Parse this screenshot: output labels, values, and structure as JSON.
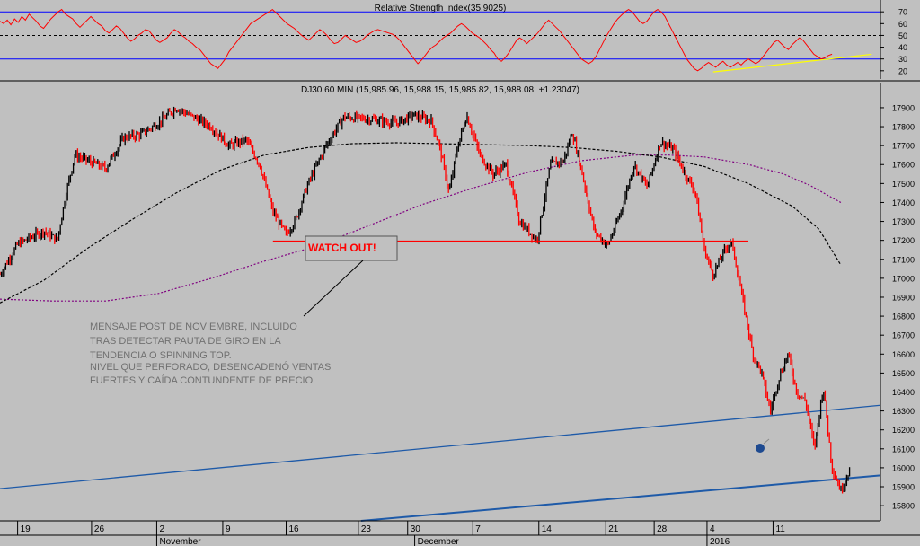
{
  "chart_data": [
    {
      "type": "line",
      "title": "Relative Strength Index(35.9025)",
      "ylim": [
        13,
        77
      ],
      "y_ticks": [
        "70",
        "60",
        "50",
        "40",
        "30",
        "20"
      ],
      "reference_lines": [
        70,
        50,
        30
      ],
      "series": [
        {
          "values": [
            62,
            60,
            63,
            59,
            64,
            61,
            66,
            63,
            68,
            65,
            62,
            58,
            56,
            60,
            64,
            67,
            70,
            72,
            68,
            66,
            64,
            60,
            57,
            60,
            63,
            66,
            63,
            60,
            58,
            54,
            52,
            55,
            58,
            56,
            52,
            48,
            45,
            47,
            50,
            52,
            55,
            54,
            50,
            46,
            44,
            46,
            48,
            52,
            55,
            53,
            50,
            48,
            45,
            43,
            40,
            38,
            34,
            30,
            26,
            24,
            22,
            26,
            30,
            36,
            40,
            44,
            48,
            52,
            56,
            60,
            62,
            64,
            66,
            68,
            70,
            72,
            69,
            66,
            63,
            60,
            58,
            56,
            53,
            50,
            48,
            46,
            49,
            52,
            55,
            53,
            50,
            46,
            43,
            44,
            47,
            50,
            48,
            46,
            44,
            45,
            47,
            50,
            52,
            54,
            55,
            54,
            53,
            52,
            51,
            49,
            46,
            42,
            38,
            34,
            30,
            26,
            29,
            33,
            37,
            40,
            42,
            45,
            48,
            50,
            52,
            55,
            58,
            60,
            58,
            55,
            52,
            50,
            48,
            45,
            42,
            38,
            35,
            30,
            28,
            31,
            35,
            40,
            45,
            48,
            46,
            43,
            46,
            49,
            52,
            56,
            60,
            63,
            60,
            57,
            54,
            50,
            46,
            42,
            38,
            34,
            30,
            28,
            26,
            28,
            32,
            38,
            44,
            50,
            55,
            60,
            64,
            67,
            70,
            72,
            70,
            66,
            62,
            60,
            62,
            66,
            70,
            72,
            70,
            66,
            60,
            54,
            48,
            42,
            36,
            30,
            26,
            22,
            20,
            22,
            25,
            27,
            25,
            23,
            26,
            28,
            25,
            23,
            25,
            27,
            25,
            28,
            30,
            28,
            26,
            28,
            32,
            36,
            40,
            44,
            46,
            43,
            40,
            38,
            42,
            45,
            48,
            46,
            42,
            38,
            34,
            32,
            30,
            31,
            33,
            34
          ]
        }
      ],
      "trendline_label": "",
      "trendline": {
        "start": [
          0.81,
          19
        ],
        "end": [
          0.99,
          34
        ],
        "color": "#ffff00"
      }
    },
    {
      "type": "candlestick",
      "title": "DJ30 60 MIN (15,985.96, 15,988.15, 15,985.82, 15,988.08, +1.23047)",
      "ylim": [
        15720,
        17985
      ],
      "y_ticks": [
        "17900",
        "17800",
        "17700",
        "17600",
        "17500",
        "17400",
        "17300",
        "17200",
        "17100",
        "17000",
        "16900",
        "16800",
        "16700",
        "16600",
        "16500",
        "16400",
        "16300",
        "16200",
        "16100",
        "16000",
        "15900",
        "15800"
      ],
      "x_ticks": [
        {
          "label": "19",
          "pos": 0.02
        },
        {
          "label": "26",
          "pos": 0.104
        },
        {
          "label": "2",
          "pos": 0.178
        },
        {
          "label": "9",
          "pos": 0.253
        },
        {
          "label": "16",
          "pos": 0.325
        },
        {
          "label": "23",
          "pos": 0.407
        },
        {
          "label": "30",
          "pos": 0.463
        },
        {
          "label": "7",
          "pos": 0.537
        },
        {
          "label": "14",
          "pos": 0.612
        },
        {
          "label": "21",
          "pos": 0.688
        },
        {
          "label": "28",
          "pos": 0.743
        },
        {
          "label": "4",
          "pos": 0.803
        },
        {
          "label": "11",
          "pos": 0.878
        }
      ],
      "month_labels": [
        {
          "label": "November",
          "pos": 0.178
        },
        {
          "label": "December",
          "pos": 0.471
        },
        {
          "label": "2016",
          "pos": 0.803
        }
      ],
      "price_path": [
        [
          0.0,
          17020
        ],
        [
          0.02,
          17180
        ],
        [
          0.05,
          17250
        ],
        [
          0.065,
          17200
        ],
        [
          0.075,
          17450
        ],
        [
          0.085,
          17650
        ],
        [
          0.1,
          17620
        ],
        [
          0.12,
          17580
        ],
        [
          0.14,
          17740
        ],
        [
          0.16,
          17760
        ],
        [
          0.18,
          17820
        ],
        [
          0.2,
          17900
        ],
        [
          0.22,
          17850
        ],
        [
          0.24,
          17800
        ],
        [
          0.26,
          17700
        ],
        [
          0.28,
          17730
        ],
        [
          0.295,
          17600
        ],
        [
          0.31,
          17350
        ],
        [
          0.325,
          17230
        ],
        [
          0.335,
          17300
        ],
        [
          0.35,
          17500
        ],
        [
          0.37,
          17700
        ],
        [
          0.39,
          17850
        ],
        [
          0.42,
          17840
        ],
        [
          0.45,
          17820
        ],
        [
          0.47,
          17860
        ],
        [
          0.49,
          17830
        ],
        [
          0.5,
          17680
        ],
        [
          0.51,
          17450
        ],
        [
          0.52,
          17700
        ],
        [
          0.53,
          17860
        ],
        [
          0.545,
          17650
        ],
        [
          0.56,
          17550
        ],
        [
          0.575,
          17600
        ],
        [
          0.59,
          17300
        ],
        [
          0.61,
          17200
        ],
        [
          0.625,
          17600
        ],
        [
          0.64,
          17620
        ],
        [
          0.65,
          17770
        ],
        [
          0.66,
          17580
        ],
        [
          0.675,
          17250
        ],
        [
          0.69,
          17170
        ],
        [
          0.705,
          17350
        ],
        [
          0.72,
          17600
        ],
        [
          0.735,
          17480
        ],
        [
          0.75,
          17720
        ],
        [
          0.765,
          17680
        ],
        [
          0.775,
          17580
        ],
        [
          0.79,
          17450
        ],
        [
          0.8,
          17150
        ],
        [
          0.81,
          17020
        ],
        [
          0.82,
          17120
        ],
        [
          0.83,
          17200
        ],
        [
          0.835,
          17100
        ],
        [
          0.845,
          16850
        ],
        [
          0.855,
          16600
        ],
        [
          0.865,
          16500
        ],
        [
          0.875,
          16300
        ],
        [
          0.885,
          16480
        ],
        [
          0.895,
          16600
        ],
        [
          0.905,
          16400
        ],
        [
          0.915,
          16350
        ],
        [
          0.925,
          16100
        ],
        [
          0.935,
          16430
        ],
        [
          0.945,
          16000
        ],
        [
          0.955,
          15880
        ],
        [
          0.965,
          15990
        ]
      ],
      "sma_short": [
        [
          0.0,
          16870
        ],
        [
          0.05,
          16990
        ],
        [
          0.1,
          17160
        ],
        [
          0.15,
          17310
        ],
        [
          0.2,
          17450
        ],
        [
          0.25,
          17570
        ],
        [
          0.3,
          17650
        ],
        [
          0.35,
          17690
        ],
        [
          0.4,
          17710
        ],
        [
          0.45,
          17715
        ],
        [
          0.5,
          17710
        ],
        [
          0.55,
          17705
        ],
        [
          0.6,
          17700
        ],
        [
          0.65,
          17690
        ],
        [
          0.7,
          17670
        ],
        [
          0.75,
          17640
        ],
        [
          0.8,
          17590
        ],
        [
          0.85,
          17500
        ],
        [
          0.9,
          17380
        ],
        [
          0.93,
          17260
        ],
        [
          0.955,
          17070
        ]
      ],
      "sma_long": [
        [
          0.0,
          16890
        ],
        [
          0.06,
          16880
        ],
        [
          0.12,
          16880
        ],
        [
          0.18,
          16920
        ],
        [
          0.24,
          17000
        ],
        [
          0.3,
          17090
        ],
        [
          0.36,
          17170
        ],
        [
          0.42,
          17280
        ],
        [
          0.48,
          17390
        ],
        [
          0.54,
          17480
        ],
        [
          0.6,
          17560
        ],
        [
          0.66,
          17620
        ],
        [
          0.72,
          17650
        ],
        [
          0.76,
          17650
        ],
        [
          0.8,
          17640
        ],
        [
          0.85,
          17600
        ],
        [
          0.89,
          17550
        ],
        [
          0.92,
          17490
        ],
        [
          0.955,
          17400
        ]
      ],
      "support_line": {
        "start": [
          0.31,
          17195
        ],
        "end": [
          0.85,
          17195
        ],
        "color": "#ff0000"
      },
      "channel_upper": {
        "start": [
          0.0,
          15890
        ],
        "end": [
          1.0,
          16330
        ],
        "color": "#1e5aa8"
      },
      "channel_lower": {
        "start": [
          0.41,
          15720
        ],
        "end": [
          1.0,
          15960
        ],
        "color": "#1e5aa8"
      },
      "annotation_box": {
        "text": "WATCH OUT!",
        "color": "#ff0000"
      },
      "annotation_note": [
        "MENSAJE POST DE NOVIEMBRE, INCLUIDO",
        "TRAS DETECTAR PAUTA DE GIRO EN LA",
        "TENDENCIA O SPINNING TOP.",
        "NIVEL QUE PERFORADO, DESENCADENÓ VENTAS",
        "FUERTES Y CAÍDA CONTUNDENTE DE PRECIO"
      ],
      "colors": {
        "up": "#000000",
        "down": "#ff0000",
        "sma_short": "#000000",
        "sma_long": "#800080"
      }
    }
  ]
}
